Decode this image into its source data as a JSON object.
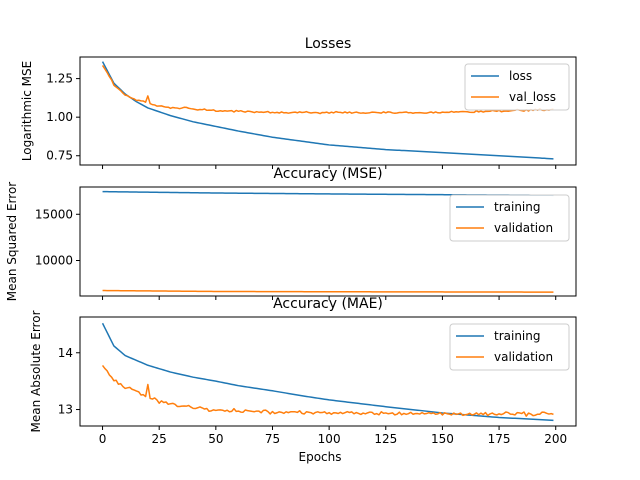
{
  "figure": {
    "xlabel": "Epochs"
  },
  "colors": {
    "blue": "#1f77b4",
    "orange": "#ff7f0e"
  },
  "chart_data": [
    {
      "type": "line",
      "title": "Losses",
      "xlabel": "",
      "ylabel": "Logarithmic MSE",
      "xlim": [
        -9.95,
        208.95
      ],
      "ylim": [
        0.69,
        1.39
      ],
      "xticks": [
        0,
        25,
        50,
        75,
        100,
        125,
        150,
        175,
        200
      ],
      "show_xtick_labels": false,
      "yticks": [
        0.75,
        1.0,
        1.25
      ],
      "ytick_labels": [
        "0.75",
        "1.00",
        "1.25"
      ],
      "legend": "upper right",
      "grid": false,
      "series": [
        {
          "name": "loss",
          "color": "#1f77b4",
          "x": [
            0,
            5,
            10,
            15,
            20,
            30,
            40,
            50,
            60,
            75,
            90,
            100,
            125,
            150,
            175,
            199
          ],
          "y": [
            1.36,
            1.22,
            1.15,
            1.1,
            1.06,
            1.01,
            0.97,
            0.94,
            0.91,
            0.87,
            0.84,
            0.82,
            0.79,
            0.77,
            0.75,
            0.73
          ],
          "noise": 0
        },
        {
          "name": "val_loss",
          "color": "#ff7f0e",
          "x": [
            0,
            5,
            10,
            15,
            19,
            20,
            21,
            25,
            35,
            50,
            75,
            100,
            125,
            150,
            175,
            199
          ],
          "y": [
            1.34,
            1.21,
            1.14,
            1.11,
            1.1,
            1.14,
            1.09,
            1.07,
            1.06,
            1.04,
            1.03,
            1.03,
            1.03,
            1.03,
            1.04,
            1.05
          ],
          "noise": 0.008
        }
      ]
    },
    {
      "type": "line",
      "title": "Accuracy (MSE)",
      "xlabel": "",
      "ylabel": "Mean Squared Error",
      "xlim": [
        -9.95,
        208.95
      ],
      "ylim": [
        6160,
        17950
      ],
      "xticks": [
        0,
        25,
        50,
        75,
        100,
        125,
        150,
        175,
        200
      ],
      "show_xtick_labels": false,
      "yticks": [
        10000,
        15000
      ],
      "ytick_labels": [
        "10000",
        "15000"
      ],
      "legend": "upper right",
      "grid": false,
      "series": [
        {
          "name": "training",
          "color": "#1f77b4",
          "x": [
            0,
            50,
            100,
            150,
            199
          ],
          "y": [
            17450,
            17300,
            17200,
            17120,
            17050
          ],
          "noise": 0
        },
        {
          "name": "validation",
          "color": "#ff7f0e",
          "x": [
            0,
            50,
            100,
            150,
            199
          ],
          "y": [
            6750,
            6650,
            6620,
            6600,
            6580
          ],
          "noise": 0
        }
      ]
    },
    {
      "type": "line",
      "title": "Accuracy (MAE)",
      "xlabel": "Epochs",
      "ylabel": "Mean Absolute Error",
      "xlim": [
        -9.95,
        208.95
      ],
      "ylim": [
        12.71,
        14.63
      ],
      "xticks": [
        0,
        25,
        50,
        75,
        100,
        125,
        150,
        175,
        200
      ],
      "show_xtick_labels": true,
      "yticks": [
        13,
        14
      ],
      "ytick_labels": [
        "13",
        "14"
      ],
      "legend": "upper right",
      "grid": false,
      "series": [
        {
          "name": "training",
          "color": "#1f77b4",
          "x": [
            0,
            5,
            10,
            20,
            30,
            40,
            50,
            60,
            75,
            90,
            100,
            125,
            150,
            175,
            199
          ],
          "y": [
            14.52,
            14.12,
            13.95,
            13.78,
            13.66,
            13.57,
            13.5,
            13.42,
            13.33,
            13.23,
            13.17,
            13.05,
            12.94,
            12.86,
            12.81
          ],
          "noise": 0
        },
        {
          "name": "validation",
          "color": "#ff7f0e",
          "x": [
            0,
            5,
            10,
            15,
            19,
            20,
            21,
            25,
            35,
            50,
            75,
            100,
            125,
            150,
            175,
            199
          ],
          "y": [
            13.77,
            13.52,
            13.4,
            13.33,
            13.22,
            13.47,
            13.2,
            13.14,
            13.06,
            12.99,
            12.96,
            12.94,
            12.93,
            12.92,
            12.92,
            12.92
          ],
          "noise": 0.04
        }
      ]
    }
  ]
}
